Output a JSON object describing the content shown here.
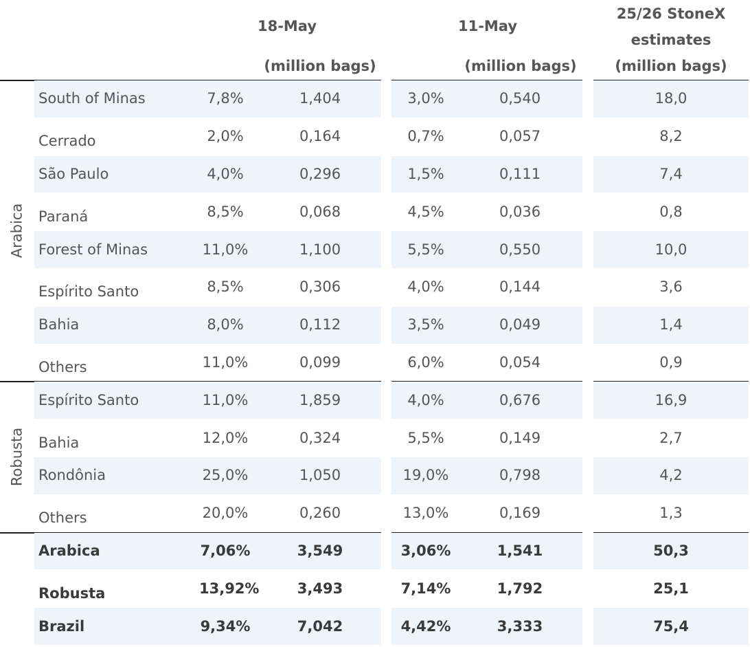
{
  "header": {
    "col1": "18-May",
    "col1_unit": "(million bags)",
    "col2": "11-May",
    "col2_unit": "(million bags)",
    "col3": [
      "25/26 StoneX",
      "estimates",
      "(million bags)"
    ]
  },
  "groups": [
    {
      "label": "Arabica",
      "rows": [
        [
          "South of Minas",
          "7,8%",
          "1,404",
          "3,0%",
          "0,540",
          "18,0"
        ],
        [
          "Cerrado",
          "2,0%",
          "0,164",
          "0,7%",
          "0,057",
          "8,2"
        ],
        [
          "São Paulo",
          "4,0%",
          "0,296",
          "1,5%",
          "0,111",
          "7,4"
        ],
        [
          "Paraná",
          "8,5%",
          "0,068",
          "4,5%",
          "0,036",
          "0,8"
        ],
        [
          "Forest of Minas",
          "11,0%",
          "1,100",
          "5,5%",
          "0,550",
          "10,0"
        ],
        [
          "Espírito Santo",
          "8,5%",
          "0,306",
          "4,0%",
          "0,144",
          "3,6"
        ],
        [
          "Bahia",
          "8,0%",
          "0,112",
          "3,5%",
          "0,049",
          "1,4"
        ],
        [
          "Others",
          "11,0%",
          "0,099",
          "6,0%",
          "0,054",
          "0,9"
        ]
      ]
    },
    {
      "label": "Robusta",
      "rows": [
        [
          "Espírito Santo",
          "11,0%",
          "1,859",
          "4,0%",
          "0,676",
          "16,9"
        ],
        [
          "Bahia",
          "12,0%",
          "0,324",
          "5,5%",
          "0,149",
          "2,7"
        ],
        [
          "Rondônia",
          "25,0%",
          "1,050",
          "19,0%",
          "0,798",
          "4,2"
        ],
        [
          "Others",
          "20,0%",
          "0,260",
          "13,0%",
          "0,169",
          "1,3"
        ]
      ]
    }
  ],
  "totals": [
    [
      "Arabica",
      "7,06%",
      "3,549",
      "3,06%",
      "1,541",
      "50,3"
    ],
    [
      "Robusta",
      "13,92%",
      "3,493",
      "7,14%",
      "1,792",
      "25,1"
    ],
    [
      "Brazil",
      "9,34%",
      "7,042",
      "4,42%",
      "3,333",
      "75,4"
    ]
  ]
}
